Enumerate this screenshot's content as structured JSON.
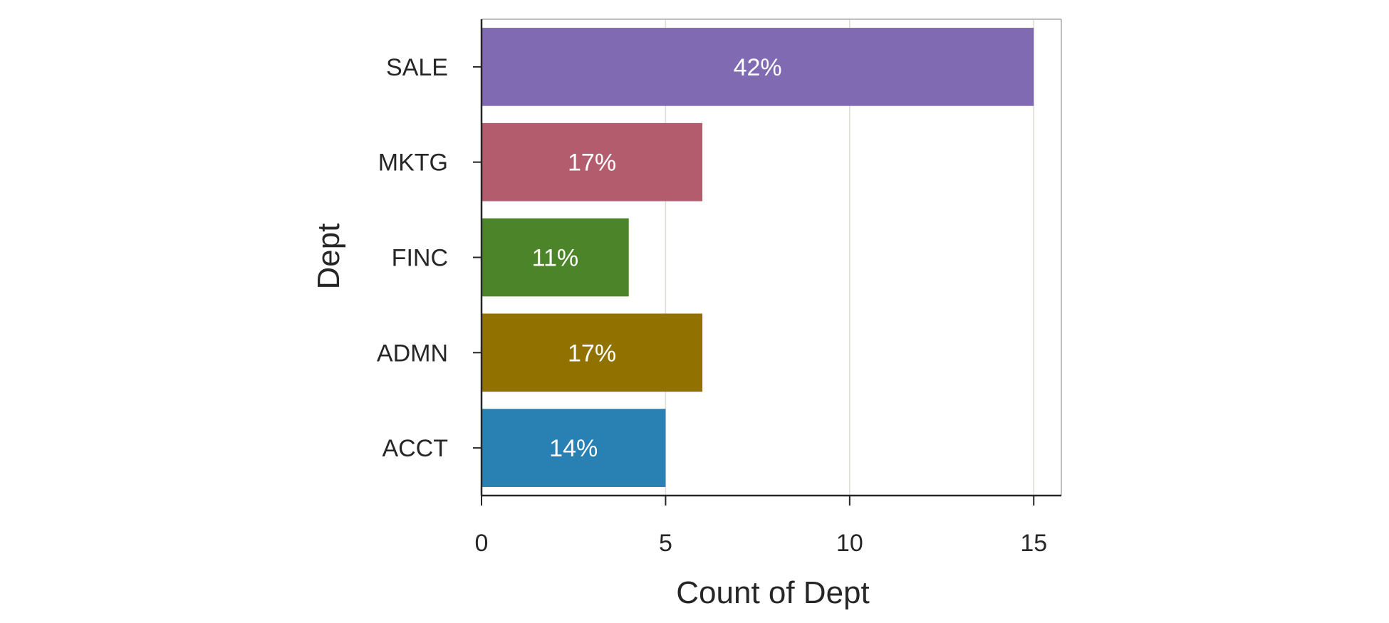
{
  "chart_data": {
    "type": "bar",
    "orientation": "horizontal",
    "title": "",
    "xlabel": "Count of Dept",
    "ylabel": "Dept",
    "categories": [
      "SALE",
      "MKTG",
      "FINC",
      "ADMN",
      "ACCT"
    ],
    "values": [
      15,
      6,
      4,
      6,
      5
    ],
    "bar_labels": [
      "42%",
      "17%",
      "11%",
      "17%",
      "14%"
    ],
    "colors": [
      "#806bb3",
      "#b35c6d",
      "#4c8529",
      "#917200",
      "#2880b3"
    ],
    "xlim": [
      0,
      15.75
    ],
    "xticks": [
      0,
      5,
      10,
      15
    ],
    "grid": "vertical",
    "legend": "none"
  }
}
